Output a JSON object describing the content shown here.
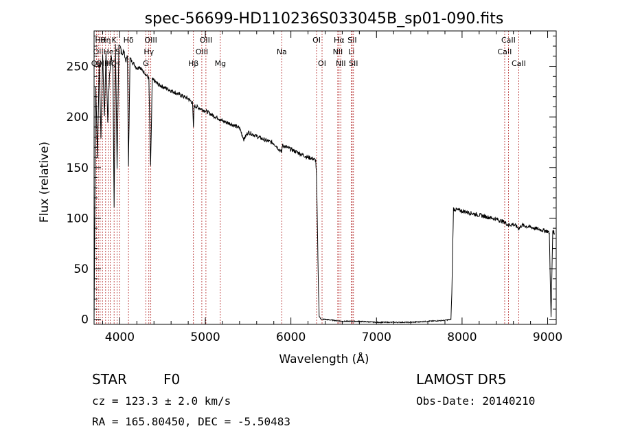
{
  "chart_data": {
    "type": "line",
    "title": "spec-56699-HD110236S033045B_sp01-090.fits",
    "xlabel": "Wavelength (Å)",
    "ylabel": "Flux (relative)",
    "xlim": [
      3700,
      9100
    ],
    "ylim": [
      -5,
      285
    ],
    "xticks": [
      4000,
      5000,
      6000,
      7000,
      8000,
      9000
    ],
    "yticks": [
      0,
      50,
      100,
      150,
      200,
      250
    ],
    "line_color": "#000000",
    "marker_color": "#b22222",
    "series": [
      {
        "x": [
          3700,
          3720,
          3740,
          3760,
          3780,
          3800,
          3820,
          3840,
          3860,
          3880,
          3900,
          3920,
          3934,
          3950,
          3969,
          3990,
          4010,
          4030,
          4050,
          4070,
          4090,
          4102,
          4120,
          4140,
          4170,
          4200,
          4230,
          4260,
          4290,
          4320,
          4340,
          4360,
          4380,
          4400,
          4450,
          4500,
          4600,
          4700,
          4800,
          4850,
          4861,
          4870,
          4900,
          5000,
          5100,
          5167,
          5200,
          5300,
          5400,
          5450,
          5500,
          5600,
          5700,
          5800,
          5893,
          5900,
          6000,
          6100,
          6200,
          6250,
          6290,
          6300,
          6320,
          6330,
          6345,
          6360,
          6400,
          6600,
          6800,
          7000,
          7200,
          7400,
          7600,
          7800,
          7870,
          7880,
          7900,
          7950,
          8000,
          8100,
          8200,
          8300,
          8400,
          8498,
          8542,
          8600,
          8662,
          8700,
          8800,
          8900,
          9000,
          9020,
          9040,
          9060,
          9080
        ],
        "y": [
          0,
          230,
          160,
          255,
          180,
          262,
          200,
          265,
          195,
          240,
          260,
          250,
          110,
          272,
          150,
          270,
          268,
          262,
          265,
          255,
          260,
          150,
          258,
          255,
          252,
          248,
          250,
          246,
          244,
          240,
          238,
          150,
          237,
          236,
          232,
          230,
          226,
          222,
          218,
          214,
          190,
          211,
          210,
          206,
          201,
          198,
          196,
          193,
          189,
          178,
          185,
          181,
          177,
          174,
          165,
          172,
          168,
          164,
          160,
          159,
          157,
          140,
          40,
          3,
          1,
          0,
          0,
          -2,
          -2,
          -3,
          -3,
          -3,
          -2,
          -1,
          0,
          25,
          109,
          108,
          107,
          105,
          103,
          101,
          99,
          96,
          93,
          94,
          90,
          93,
          91,
          89,
          87,
          85,
          2,
          88,
          85
        ]
      }
    ],
    "lines": [
      {
        "wl": 3727,
        "label": "OII",
        "row": 3
      },
      {
        "wl": 3750,
        "label": "OII",
        "row": 2
      },
      {
        "wl": 3771,
        "label": "Hθ",
        "row": 1
      },
      {
        "wl": 3798,
        "label": "OIII",
        "row": 3
      },
      {
        "wl": 3835,
        "label": "Hη",
        "row": 1
      },
      {
        "wl": 3869,
        "label": "He",
        "row": 2
      },
      {
        "wl": 3889,
        "label": "Hζ",
        "row": 3
      },
      {
        "wl": 3934,
        "label": "K",
        "row": 1
      },
      {
        "wl": 3969,
        "label": "H",
        "row": 3
      },
      {
        "wl": 4000,
        "label": "Sii",
        "row": 2
      },
      {
        "wl": 4102,
        "label": "Hδ",
        "row": 1
      },
      {
        "wl": 4304,
        "label": "G",
        "row": 3
      },
      {
        "wl": 4340,
        "label": "Hγ",
        "row": 2
      },
      {
        "wl": 4363,
        "label": "OIII",
        "row": 1
      },
      {
        "wl": 4861,
        "label": "Hβ",
        "row": 3
      },
      {
        "wl": 4959,
        "label": "OIII",
        "row": 2
      },
      {
        "wl": 5007,
        "label": "OIII",
        "row": 1
      },
      {
        "wl": 5175,
        "label": "Mg",
        "row": 3
      },
      {
        "wl": 5893,
        "label": "Na",
        "row": 2
      },
      {
        "wl": 6300,
        "label": "OI",
        "row": 1
      },
      {
        "wl": 6364,
        "label": "OI",
        "row": 3
      },
      {
        "wl": 6548,
        "label": "NII",
        "row": 2
      },
      {
        "wl": 6563,
        "label": "Hα",
        "row": 1
      },
      {
        "wl": 6583,
        "label": "NII",
        "row": 3
      },
      {
        "wl": 6707,
        "label": "Li",
        "row": 2
      },
      {
        "wl": 6716,
        "label": "SII",
        "row": 1
      },
      {
        "wl": 6731,
        "label": "SII",
        "row": 3
      },
      {
        "wl": 8498,
        "label": "CaII",
        "row": 2
      },
      {
        "wl": 8542,
        "label": "CaII",
        "row": 1
      },
      {
        "wl": 8662,
        "label": "CaII",
        "row": 3
      }
    ]
  },
  "info": {
    "object_class": "STAR",
    "subclass": "F0",
    "survey": "LAMOST DR5",
    "cz": "cz = 123.3 ± 2.0 km/s",
    "obs_date": "Obs-Date: 20140210",
    "coords": "RA = 165.80450, DEC =  -5.50483"
  }
}
